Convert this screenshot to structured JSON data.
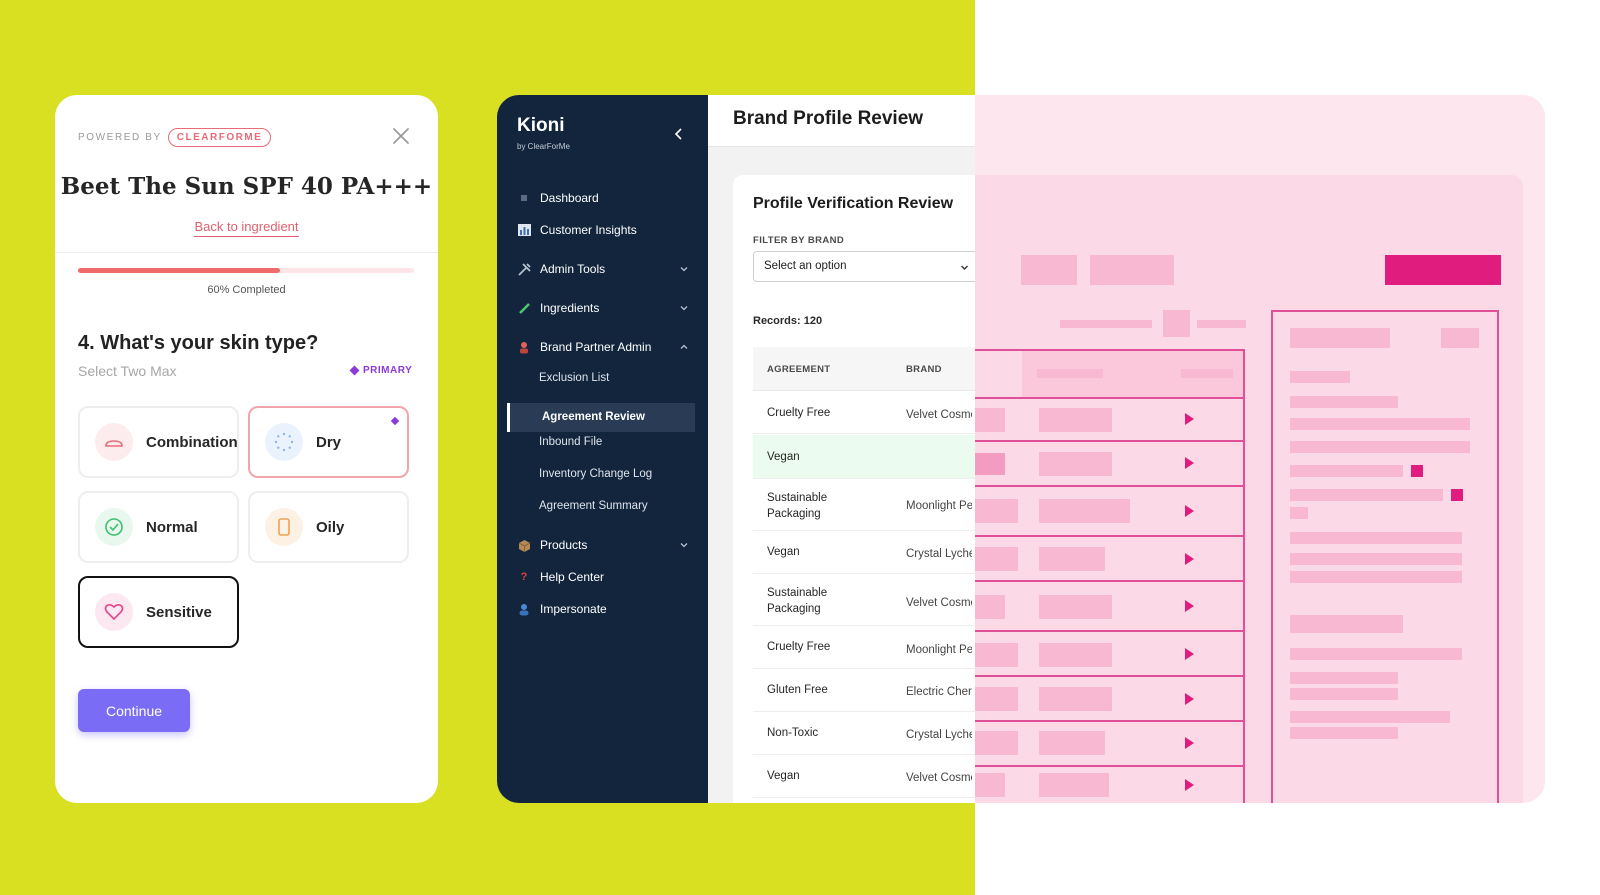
{
  "quiz": {
    "powered_by": "POWERED BY",
    "brand": "CLEARFORME",
    "close_icon": "close-icon",
    "product_title": "Beet The Sun SPF 40 PA+++",
    "back_link": "Back to ingredient",
    "progress_percent": 60,
    "progress_text": "60% Completed",
    "question": "4. What's your skin type?",
    "hint": "Select Two Max",
    "primary_tag": "PRIMARY",
    "options": [
      {
        "label": "Combination",
        "icon": "combination-icon"
      },
      {
        "label": "Dry",
        "icon": "dry-icon"
      },
      {
        "label": "Normal",
        "icon": "normal-check-icon"
      },
      {
        "label": "Oily",
        "icon": "oily-icon"
      },
      {
        "label": "Sensitive",
        "icon": "heart-icon"
      }
    ],
    "continue_label": "Continue",
    "colors": {
      "accent": "#7a6cf4",
      "brand_red": "#e86b78",
      "primary_purple": "#8b3bd9"
    }
  },
  "admin": {
    "logo": "Kioni",
    "logo_sub": "by ClearForMe",
    "nav": [
      {
        "label": "Dashboard",
        "icon": "dashboard-icon"
      },
      {
        "label": "Customer Insights",
        "icon": "chart-icon"
      },
      {
        "label": "Admin Tools",
        "icon": "tools-icon"
      },
      {
        "label": "Ingredients",
        "icon": "pencil-icon"
      },
      {
        "label": "Brand Partner Admin",
        "icon": "person-icon"
      },
      {
        "label": "Products",
        "icon": "box-icon"
      },
      {
        "label": "Help Center",
        "icon": "question-icon"
      },
      {
        "label": "Impersonate",
        "icon": "user-icon"
      }
    ],
    "sub_nav": [
      "Exclusion List",
      "Agreement Review",
      "Inbound File",
      "Inventory Change Log",
      "Agreement Summary"
    ],
    "page_title": "Brand Profile Review",
    "section_title": "Profile Verification Review",
    "filter_label": "FILTER BY BRAND",
    "select_value": "Select an option",
    "records": "Records: 120",
    "columns": [
      "AGREEMENT",
      "BRAND"
    ],
    "rows": [
      {
        "agreement": "Cruelty Free",
        "brand": "Velvet Cosmetics"
      },
      {
        "agreement": "Vegan",
        "brand": ""
      },
      {
        "agreement": "Sustainable Packaging",
        "brand": "Moonlight Pearl"
      },
      {
        "agreement": "Vegan",
        "brand": "Crystal Lychee"
      },
      {
        "agreement": "Sustainable Packaging",
        "brand": "Velvet Cosmetics"
      },
      {
        "agreement": "Cruelty Free",
        "brand": "Moonlight Pearl"
      },
      {
        "agreement": "Gluten Free",
        "brand": "Electric Cherry"
      },
      {
        "agreement": "Non-Toxic",
        "brand": "Crystal Lychee"
      },
      {
        "agreement": "Vegan",
        "brand": "Velvet Cosmetics"
      }
    ],
    "colors": {
      "sidebar": "#12253d",
      "highlight_row": "#ecfbf0",
      "wire_pink": "#e01c7e"
    }
  }
}
